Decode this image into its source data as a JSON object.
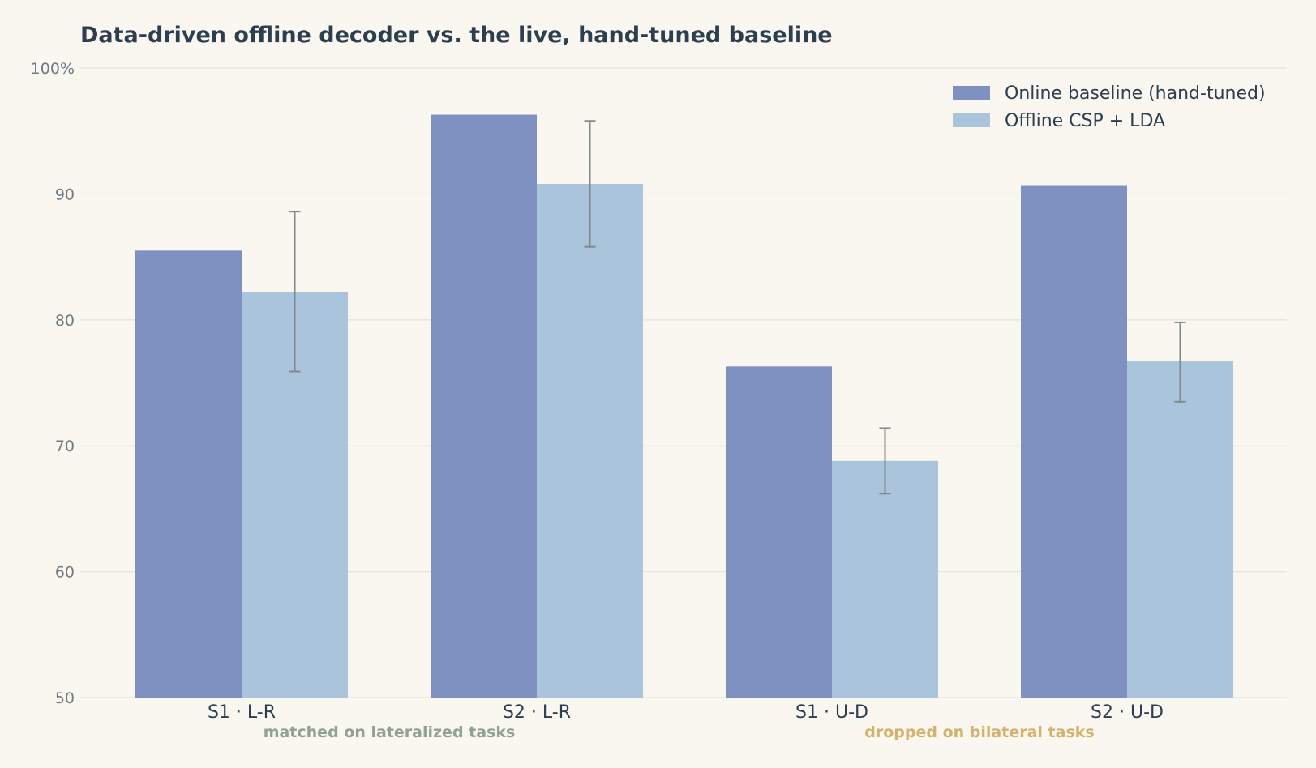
{
  "chart_data": {
    "type": "bar",
    "title": "Data-driven offline decoder vs. the live, hand-tuned baseline",
    "xlabel": "",
    "ylabel": "",
    "ylim": [
      50,
      100
    ],
    "yticks": [
      50,
      60,
      70,
      80,
      90,
      100
    ],
    "ytick_labels": [
      "50",
      "60",
      "70",
      "80",
      "90",
      "100%"
    ],
    "grid": "horizontal",
    "legend_position": "top-right",
    "categories": [
      "S1 · L-R",
      "S2 · L-R",
      "S1 · U-D",
      "S2 · U-D"
    ],
    "series": [
      {
        "name": "Online baseline (hand-tuned)",
        "color": "#7f91c0",
        "values": [
          85.5,
          96.3,
          76.3,
          90.7
        ]
      },
      {
        "name": "Offline CSP + LDA",
        "color": "#a9c4db",
        "values": [
          82.2,
          90.8,
          68.8,
          76.7
        ],
        "error": [
          [
            75.9,
            88.6
          ],
          [
            85.8,
            95.8
          ],
          [
            66.2,
            71.4
          ],
          [
            73.5,
            79.8
          ]
        ]
      }
    ],
    "annotations": [
      {
        "text": "matched on lateralized tasks",
        "color": "#8fa38f",
        "categories": [
          0,
          1
        ]
      },
      {
        "text": "dropped on bilateral tasks",
        "color": "#d4b26e",
        "categories": [
          2,
          3
        ]
      }
    ]
  }
}
